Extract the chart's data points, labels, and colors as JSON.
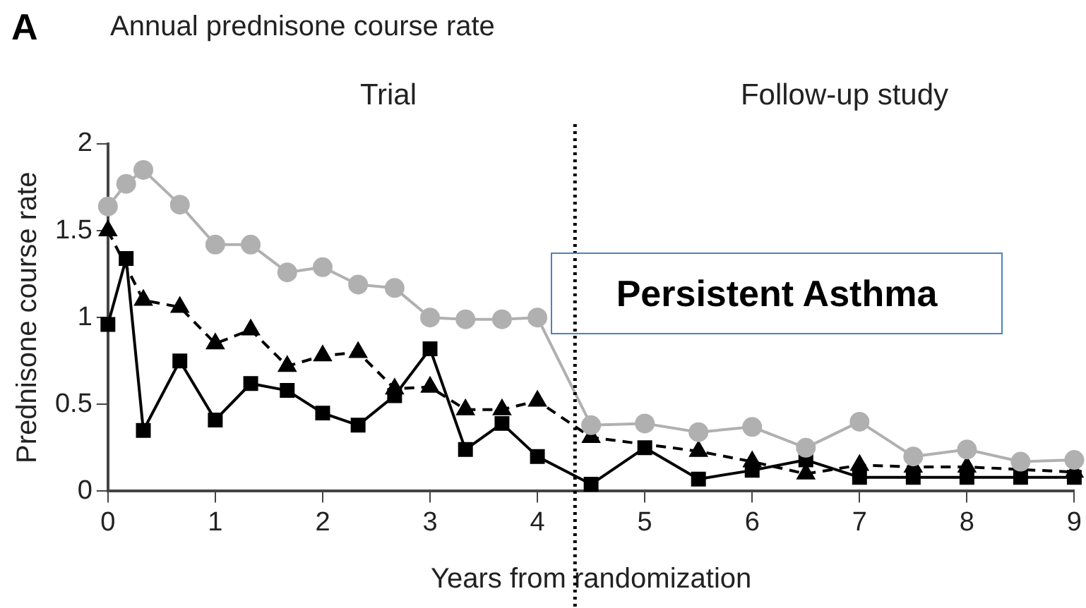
{
  "chart_data": {
    "type": "line",
    "title": "Annual prednisone course rate",
    "xlabel": "Years from randomization",
    "ylabel": "Prednisone course rate",
    "annotations": [
      "A",
      "Trial",
      "Follow-up study",
      "Persistent Asthma"
    ],
    "xlim": [
      0,
      9
    ],
    "xticks": [
      0,
      1,
      2,
      3,
      4,
      5,
      6,
      7,
      8,
      9
    ],
    "ylim": [
      0,
      2
    ],
    "yticks": [
      0,
      0.5,
      1,
      1.5,
      2
    ],
    "grid": false,
    "legend": false,
    "ref_lines": [
      {
        "axis": "x",
        "value": 4.35,
        "color": "#000000",
        "line_style": "dotted"
      }
    ],
    "series": [
      {
        "color": "#b0b0b0",
        "marker": "circle",
        "line_style": "solid",
        "x": [
          0,
          0.17,
          0.33,
          0.67,
          1,
          1.33,
          1.67,
          2,
          2.33,
          2.67,
          3,
          3.33,
          3.67,
          4,
          4.5,
          5,
          5.5,
          6,
          6.5,
          7,
          7.5,
          8,
          8.5,
          9
        ],
        "values": [
          1.64,
          1.77,
          1.85,
          1.65,
          1.42,
          1.42,
          1.26,
          1.29,
          1.19,
          1.17,
          1.0,
          0.99,
          0.99,
          1.0,
          0.38,
          0.39,
          0.34,
          0.37,
          0.25,
          0.4,
          0.2,
          0.24,
          0.17,
          0.18
        ]
      },
      {
        "color": "#000000",
        "marker": "triangle",
        "line_style": "dashed",
        "x": [
          0,
          0.33,
          0.67,
          1,
          1.33,
          1.67,
          2,
          2.33,
          2.67,
          3,
          3.33,
          3.67,
          4,
          4.5,
          5,
          5.5,
          6,
          6.5,
          7,
          7.5,
          8,
          8.5,
          9
        ],
        "values": [
          1.5,
          1.1,
          1.06,
          0.85,
          0.93,
          0.72,
          0.78,
          0.8,
          0.59,
          0.6,
          0.47,
          0.47,
          0.52,
          0.31,
          null,
          0.23,
          0.17,
          0.1,
          0.15,
          0.14,
          0.14,
          null,
          0.11
        ]
      },
      {
        "color": "#000000",
        "marker": "square",
        "line_style": "solid",
        "x": [
          0,
          0.17,
          0.33,
          0.67,
          1,
          1.33,
          1.67,
          2,
          2.33,
          2.67,
          3,
          3.33,
          3.67,
          4,
          4.5,
          5,
          5.5,
          6,
          6.5,
          7,
          7.5,
          8,
          8.5,
          9
        ],
        "values": [
          0.96,
          1.34,
          0.35,
          0.75,
          0.41,
          0.62,
          0.58,
          0.45,
          0.38,
          0.55,
          0.82,
          0.24,
          0.39,
          0.2,
          0.04,
          0.25,
          0.07,
          0.12,
          0.18,
          0.08,
          0.08,
          0.08,
          0.08,
          0.08
        ]
      }
    ]
  }
}
